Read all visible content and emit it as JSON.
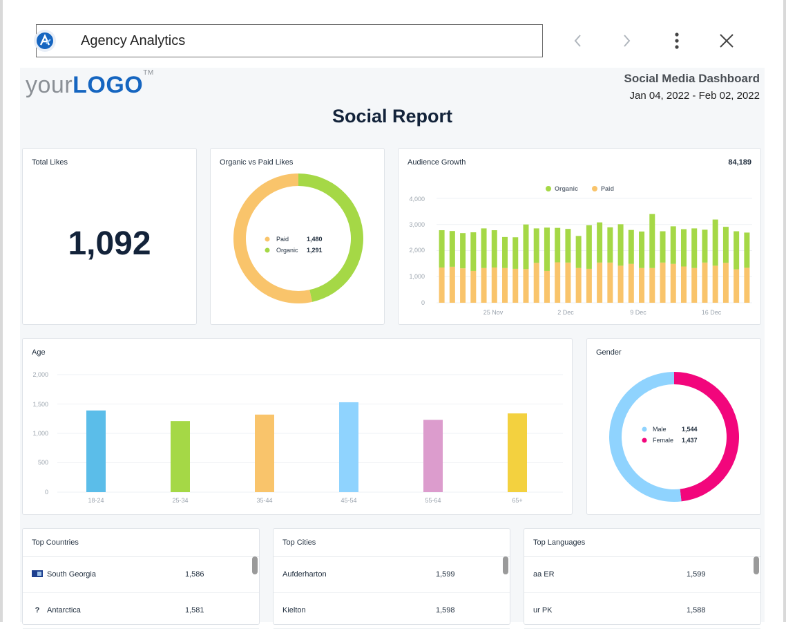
{
  "browser": {
    "app_title": "Agency Analytics",
    "icons": [
      "agency-analytics-logo",
      "chevron-left",
      "chevron-right",
      "more-vertical",
      "close"
    ]
  },
  "report": {
    "logo_prefix": "your",
    "logo_brand": "LOGO",
    "logo_tm": "TM",
    "dashboard_title": "Social Media Dashboard",
    "date_range": "Jan 04, 2022 - Feb 02, 2022",
    "title": "Social Report"
  },
  "total_likes": {
    "title": "Total Likes",
    "value": "1,092"
  },
  "organic_vs_paid": {
    "title": "Organic vs Paid Likes",
    "paid_label": "Paid",
    "paid_value": "1,480",
    "organic_label": "Organic",
    "organic_value": "1,291"
  },
  "audience_growth": {
    "title": "Audience Growth",
    "total": "84,189",
    "legend_organic": "Organic",
    "legend_paid": "Paid",
    "y_ticks": [
      "4,000",
      "3,000",
      "2,000",
      "1,000",
      "0"
    ],
    "x_ticks": [
      "25 Nov",
      "2 Dec",
      "9 Dec",
      "16 Dec"
    ]
  },
  "age": {
    "title": "Age",
    "y_ticks": [
      "2,000",
      "1,500",
      "1,000",
      "500",
      "0"
    ]
  },
  "gender": {
    "title": "Gender",
    "male_label": "Male",
    "male_value": "1,544",
    "female_label": "Female",
    "female_value": "1,437"
  },
  "top_countries": {
    "title": "Top Countries",
    "rows": [
      {
        "name": "South Georgia",
        "value": "1,586"
      },
      {
        "name": "Antarctica",
        "value": "1,581",
        "prefix": "?"
      }
    ]
  },
  "top_cities": {
    "title": "Top Cities",
    "rows": [
      {
        "name": "Aufderharton",
        "value": "1,599"
      },
      {
        "name": "Kielton",
        "value": "1,598"
      }
    ]
  },
  "top_languages": {
    "title": "Top Languages",
    "rows": [
      {
        "name": "aa ER",
        "value": "1,599"
      },
      {
        "name": "ur PK",
        "value": "1,588"
      }
    ]
  },
  "colors": {
    "organic": "#a5d846",
    "paid": "#f9c46b",
    "male": "#8fd3fe",
    "female": "#f2067c",
    "title_navy": "#13233a"
  },
  "chart_data": [
    {
      "type": "pie",
      "title": "Organic vs Paid Likes",
      "labels": [
        "Paid",
        "Organic"
      ],
      "values": [
        1480,
        1291
      ]
    },
    {
      "type": "bar",
      "title": "Audience Growth",
      "stacked": true,
      "ylim": [
        0,
        4000
      ],
      "x_ticks": [
        "25 Nov",
        "2 Dec",
        "9 Dec",
        "16 Dec"
      ],
      "series": [
        {
          "name": "Paid",
          "values": [
            1350,
            1380,
            1320,
            1220,
            1330,
            1350,
            1330,
            1300,
            1290,
            1530,
            1220,
            1550,
            1540,
            1330,
            1300,
            1540,
            1540,
            1420,
            1490,
            1330,
            1330,
            1540,
            1490,
            1390,
            1330,
            1540,
            1420,
            1530,
            1280,
            1340
          ]
        },
        {
          "name": "Organic",
          "values": [
            1430,
            1370,
            1350,
            1480,
            1520,
            1430,
            1190,
            1210,
            1710,
            1320,
            1660,
            1320,
            1290,
            1230,
            1670,
            1540,
            1350,
            1590,
            1300,
            1400,
            2070,
            1200,
            1440,
            1430,
            1520,
            1260,
            1770,
            1380,
            1460,
            1350
          ]
        }
      ],
      "legend": "top-center",
      "grid": true
    },
    {
      "type": "bar",
      "title": "Age",
      "categories": [
        "18-24",
        "25-34",
        "35-44",
        "45-54",
        "55-64",
        "65+"
      ],
      "values": [
        1390,
        1210,
        1320,
        1530,
        1230,
        1340
      ],
      "ylim": [
        0,
        2000
      ],
      "grid": true
    },
    {
      "type": "pie",
      "title": "Gender",
      "labels": [
        "Male",
        "Female"
      ],
      "values": [
        1544,
        1437
      ]
    }
  ]
}
